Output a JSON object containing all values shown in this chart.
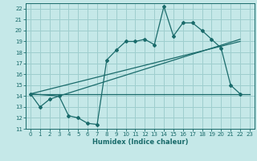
{
  "xlabel": "Humidex (Indice chaleur)",
  "ylabel": "",
  "xlim": [
    -0.5,
    23.5
  ],
  "ylim": [
    11,
    22.5
  ],
  "xticks": [
    0,
    1,
    2,
    3,
    4,
    5,
    6,
    7,
    8,
    9,
    10,
    11,
    12,
    13,
    14,
    15,
    16,
    17,
    18,
    19,
    20,
    21,
    22,
    23
  ],
  "yticks": [
    11,
    12,
    13,
    14,
    15,
    16,
    17,
    18,
    19,
    20,
    21,
    22
  ],
  "bg_color": "#c5e8e8",
  "line_color": "#1a6b6b",
  "grid_color": "#9ecece",
  "line1_x": [
    0,
    1,
    2,
    3,
    4,
    5,
    6,
    7,
    8,
    9,
    10,
    11,
    12,
    13,
    14,
    15,
    16,
    17,
    18,
    19,
    20,
    21,
    22
  ],
  "line1_y": [
    14.2,
    13.0,
    13.7,
    14.0,
    12.2,
    12.0,
    11.5,
    11.4,
    17.3,
    18.2,
    19.0,
    19.0,
    19.2,
    18.7,
    22.2,
    19.5,
    20.7,
    20.7,
    20.0,
    19.2,
    18.4,
    15.0,
    14.2
  ],
  "line2_x": [
    0,
    22
  ],
  "line2_y": [
    14.2,
    19.0
  ],
  "line3_x": [
    0,
    23
  ],
  "line3_y": [
    14.2,
    14.2
  ],
  "line4_x": [
    0,
    3,
    22
  ],
  "line4_y": [
    14.2,
    14.0,
    19.2
  ]
}
